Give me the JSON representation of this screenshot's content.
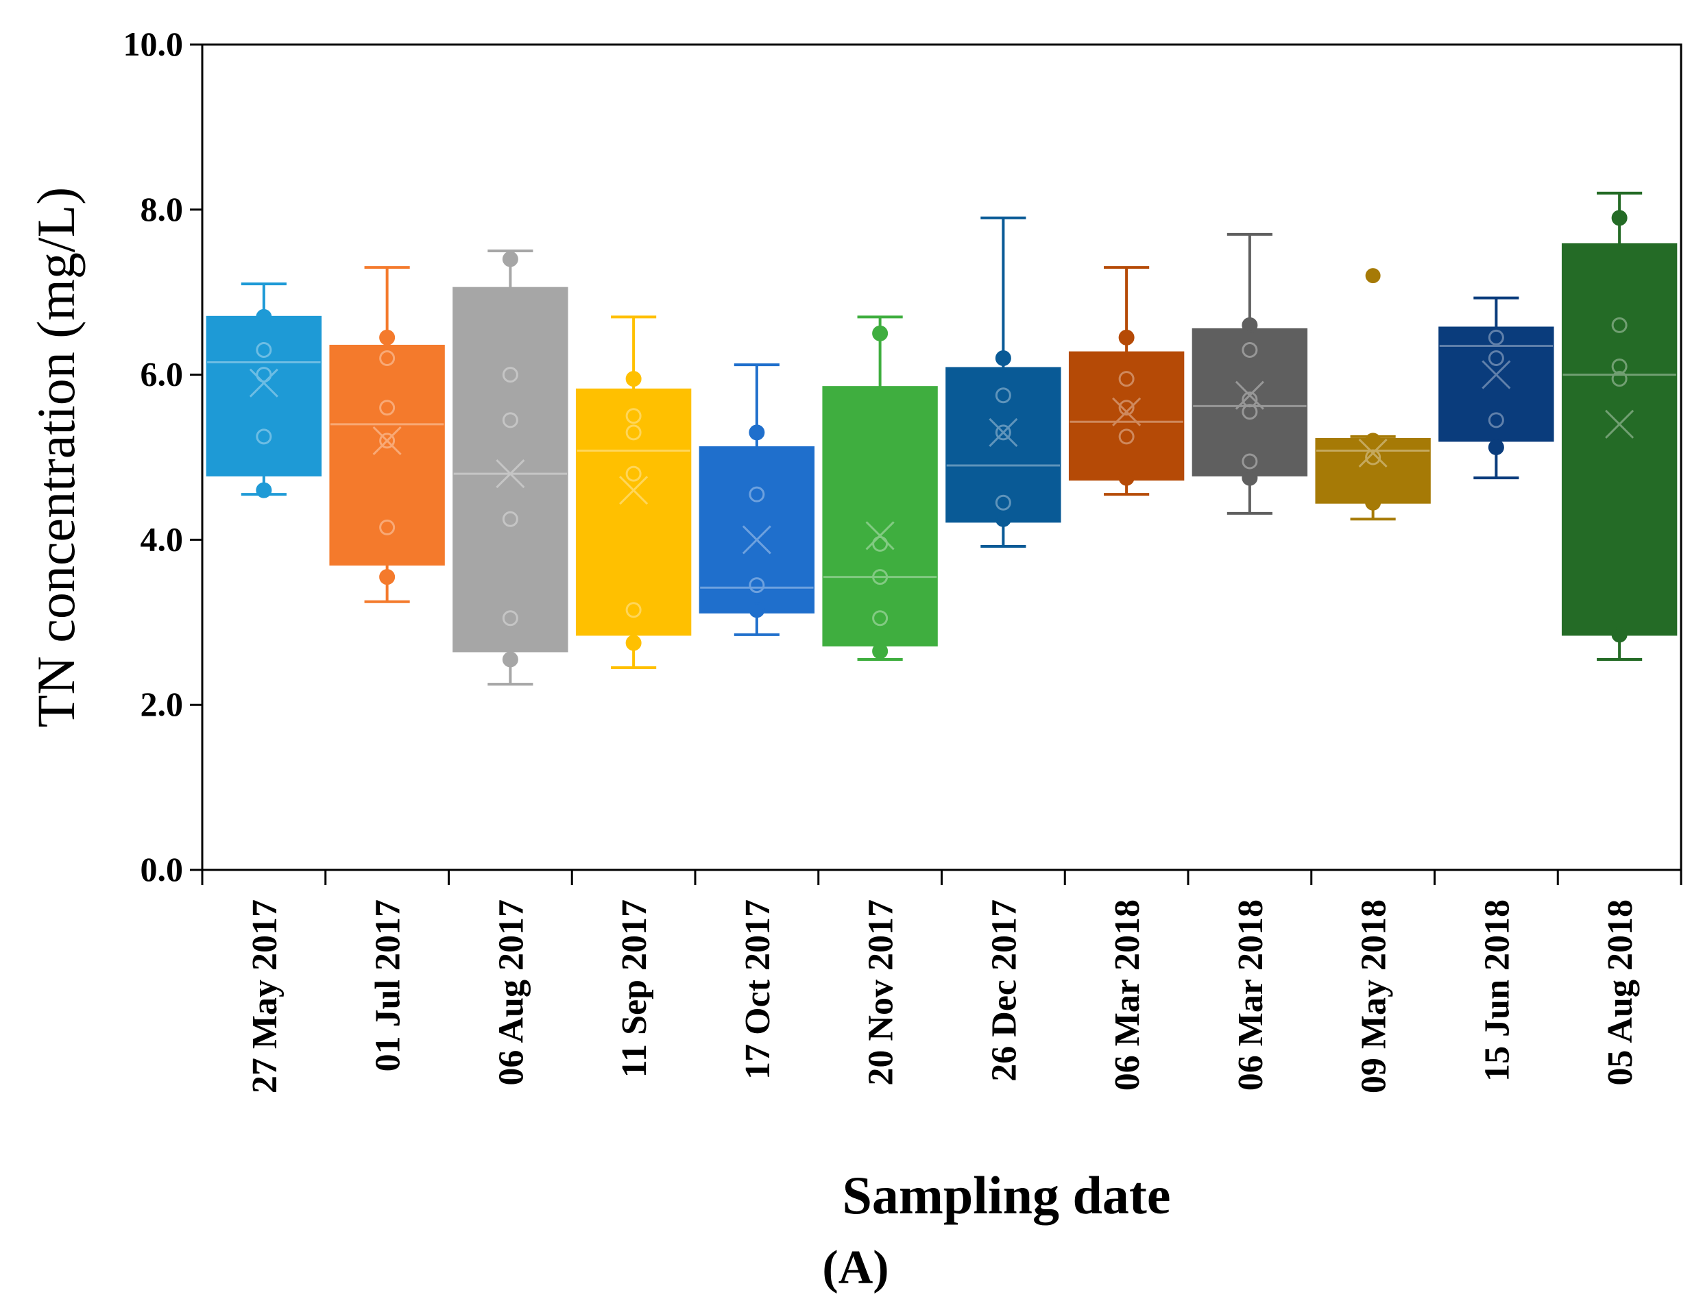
{
  "chart_data": {
    "type": "box",
    "title": "",
    "xlabel": "Sampling date",
    "ylabel": "TN concentration (mg/L)",
    "panel_label": "(A)",
    "ylim": [
      0,
      10
    ],
    "yticks": [
      0,
      2,
      4,
      6,
      8,
      10
    ],
    "ytick_labels": [
      "0.0",
      "2.0",
      "4.0",
      "6.0",
      "8.0",
      "10.0"
    ],
    "grid": false,
    "legend": "none",
    "categories": [
      "27 May 2017",
      "01 Jul 2017",
      "06 Aug 2017",
      "11 Sep 2017",
      "17 Oct 2017",
      "20 Nov 2017",
      "26 Dec 2017",
      "06 Mar 2018",
      "06 Mar 2018",
      "09 May 2018",
      "15 Jun 2018",
      "05 Aug 2018"
    ],
    "boxes": [
      {
        "min": 4.55,
        "q1": 4.78,
        "median": 6.15,
        "q3": 6.7,
        "max": 7.1,
        "mean": 5.9,
        "color": "#1E9AD6",
        "points": [
          4.6,
          5.25,
          6.0,
          6.3,
          6.7
        ]
      },
      {
        "min": 3.25,
        "q1": 3.7,
        "median": 5.4,
        "q3": 6.35,
        "max": 7.3,
        "mean": 5.2,
        "color": "#F47A2C",
        "points": [
          3.55,
          4.15,
          5.2,
          5.6,
          6.2,
          6.45
        ]
      },
      {
        "min": 2.25,
        "q1": 2.65,
        "median": 4.8,
        "q3": 7.05,
        "max": 7.5,
        "mean": 4.8,
        "color": "#A6A6A6",
        "points": [
          2.55,
          3.05,
          4.25,
          5.45,
          6.0,
          7.4
        ]
      },
      {
        "min": 2.45,
        "q1": 2.85,
        "median": 5.08,
        "q3": 5.82,
        "max": 6.7,
        "mean": 4.6,
        "color": "#FFC000",
        "points": [
          2.75,
          3.15,
          4.8,
          5.3,
          5.5,
          5.95
        ]
      },
      {
        "min": 2.85,
        "q1": 3.12,
        "median": 3.42,
        "q3": 5.12,
        "max": 6.12,
        "mean": 4.0,
        "color": "#1F6FCC",
        "points": [
          3.15,
          3.45,
          4.55,
          5.3
        ]
      },
      {
        "min": 2.55,
        "q1": 2.72,
        "median": 3.55,
        "q3": 5.85,
        "max": 6.7,
        "mean": 4.05,
        "color": "#3FAE3F",
        "points": [
          2.65,
          3.05,
          3.55,
          3.95,
          6.5
        ]
      },
      {
        "min": 3.92,
        "q1": 4.22,
        "median": 4.9,
        "q3": 6.08,
        "max": 7.9,
        "mean": 5.3,
        "color": "#095A96",
        "points": [
          4.25,
          4.45,
          5.3,
          5.75,
          6.2
        ]
      },
      {
        "min": 4.55,
        "q1": 4.73,
        "median": 5.43,
        "q3": 6.27,
        "max": 7.3,
        "mean": 5.55,
        "color": "#B54A06",
        "points": [
          4.75,
          5.25,
          5.6,
          5.95,
          6.45
        ]
      },
      {
        "min": 4.32,
        "q1": 4.78,
        "median": 5.62,
        "q3": 6.55,
        "max": 7.7,
        "mean": 5.75,
        "color": "#5F5F5F",
        "points": [
          4.75,
          4.95,
          5.55,
          5.7,
          6.3,
          6.6
        ]
      },
      {
        "min": 4.25,
        "q1": 4.45,
        "median": 5.08,
        "q3": 5.22,
        "max": 5.25,
        "mean": 5.05,
        "color": "#A67A06",
        "points": [
          4.45,
          5.0,
          5.2
        ],
        "outliers": [
          7.2
        ]
      },
      {
        "min": 4.75,
        "q1": 5.2,
        "median": 6.35,
        "q3": 6.57,
        "max": 6.93,
        "mean": 6.0,
        "color": "#0A3C7C",
        "points": [
          5.12,
          5.45,
          6.2,
          6.45
        ]
      },
      {
        "min": 2.55,
        "q1": 2.85,
        "median": 6.0,
        "q3": 7.58,
        "max": 8.2,
        "mean": 5.4,
        "color": "#246B26",
        "points": [
          2.85,
          5.95,
          6.1,
          6.6,
          7.9
        ]
      }
    ]
  }
}
